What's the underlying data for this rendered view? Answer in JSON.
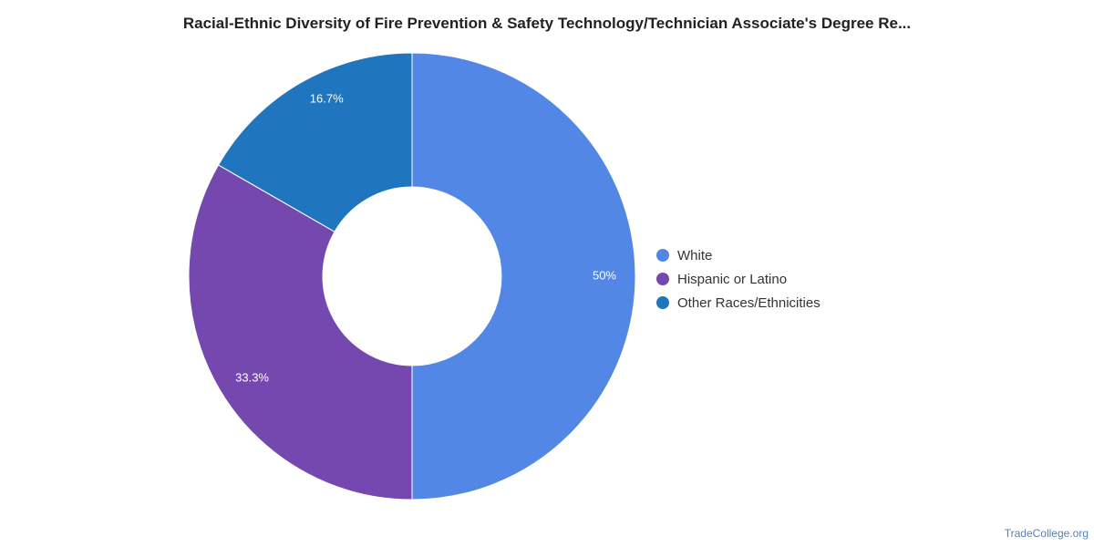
{
  "chart_data": {
    "type": "pie",
    "title": "Racial-Ethnic Diversity of Fire Prevention & Safety Technology/Technician Associate's Degree Re...",
    "categories": [
      "White",
      "Hispanic or Latino",
      "Other Races/Ethnicities"
    ],
    "values": [
      50,
      33.3,
      16.7
    ],
    "labels": [
      "50%",
      "33.3%",
      "16.7%"
    ],
    "colors": [
      "#5387e5",
      "#7548b0",
      "#1f76be"
    ],
    "donut": true,
    "legend_position": "right"
  },
  "credit": "TradeCollege.org"
}
